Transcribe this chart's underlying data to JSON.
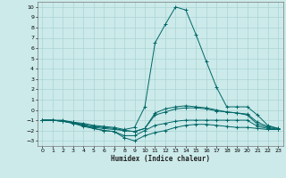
{
  "xlabel": "Humidex (Indice chaleur)",
  "bg_color": "#cceaea",
  "grid_color": "#aad4d4",
  "line_color": "#006666",
  "xlim": [
    -0.5,
    23.5
  ],
  "ylim": [
    -3.5,
    10.5
  ],
  "xticks": [
    0,
    1,
    2,
    3,
    4,
    5,
    6,
    7,
    8,
    9,
    10,
    11,
    12,
    13,
    14,
    15,
    16,
    17,
    18,
    19,
    20,
    21,
    22,
    23
  ],
  "yticks": [
    -3,
    -2,
    -1,
    0,
    1,
    2,
    3,
    4,
    5,
    6,
    7,
    8,
    9,
    10
  ],
  "series": [
    {
      "x": [
        0,
        1,
        2,
        3,
        4,
        5,
        6,
        7,
        8,
        9,
        10,
        11,
        12,
        13,
        14,
        15,
        16,
        17,
        18,
        19,
        20,
        21,
        22,
        23
      ],
      "y": [
        -1,
        -1,
        -1,
        -1.2,
        -1.3,
        -1.5,
        -1.6,
        -1.7,
        -1.9,
        -1.7,
        0.3,
        6.5,
        8.3,
        10.0,
        9.7,
        7.3,
        4.7,
        2.2,
        0.3,
        0.3,
        0.3,
        -0.5,
        -1.5,
        -1.8
      ]
    },
    {
      "x": [
        0,
        1,
        2,
        3,
        4,
        5,
        6,
        7,
        8,
        9,
        10,
        11,
        12,
        13,
        14,
        15,
        16,
        17,
        18,
        19,
        20,
        21,
        22,
        23
      ],
      "y": [
        -1,
        -1,
        -1.1,
        -1.2,
        -1.5,
        -1.7,
        -1.8,
        -1.9,
        -2.0,
        -2.1,
        -1.8,
        -0.5,
        -0.2,
        0.1,
        0.2,
        0.2,
        0.1,
        -0.1,
        -0.2,
        -0.3,
        -0.5,
        -1.4,
        -1.7,
        -1.9
      ]
    },
    {
      "x": [
        0,
        1,
        2,
        3,
        4,
        5,
        6,
        7,
        8,
        9,
        10,
        11,
        12,
        13,
        14,
        15,
        16,
        17,
        18,
        19,
        20,
        21,
        22,
        23
      ],
      "y": [
        -1,
        -1,
        -1.1,
        -1.3,
        -1.5,
        -1.8,
        -2.0,
        -2.1,
        -2.7,
        -3.0,
        -2.5,
        -2.2,
        -2.0,
        -1.7,
        -1.5,
        -1.4,
        -1.4,
        -1.5,
        -1.6,
        -1.7,
        -1.7,
        -1.8,
        -1.9,
        -1.9
      ]
    },
    {
      "x": [
        0,
        1,
        2,
        3,
        4,
        5,
        6,
        7,
        8,
        9,
        10,
        11,
        12,
        13,
        14,
        15,
        16,
        17,
        18,
        19,
        20,
        21,
        22,
        23
      ],
      "y": [
        -1,
        -1,
        -1.1,
        -1.3,
        -1.6,
        -1.8,
        -2.0,
        -2.1,
        -2.5,
        -2.5,
        -2.0,
        -1.5,
        -1.3,
        -1.1,
        -1.0,
        -1.0,
        -1.0,
        -1.0,
        -1.0,
        -1.0,
        -1.0,
        -1.6,
        -1.8,
        -1.9
      ]
    },
    {
      "x": [
        0,
        1,
        2,
        3,
        4,
        5,
        6,
        7,
        8,
        9,
        10,
        11,
        12,
        13,
        14,
        15,
        16,
        17,
        18,
        19,
        20,
        21,
        22,
        23
      ],
      "y": [
        -1,
        -1,
        -1.1,
        -1.2,
        -1.4,
        -1.6,
        -1.7,
        -1.8,
        -2.0,
        -2.1,
        -1.8,
        -0.3,
        0.1,
        0.3,
        0.4,
        0.3,
        0.2,
        0.0,
        -0.2,
        -0.3,
        -0.4,
        -1.2,
        -1.6,
        -1.8
      ]
    }
  ]
}
